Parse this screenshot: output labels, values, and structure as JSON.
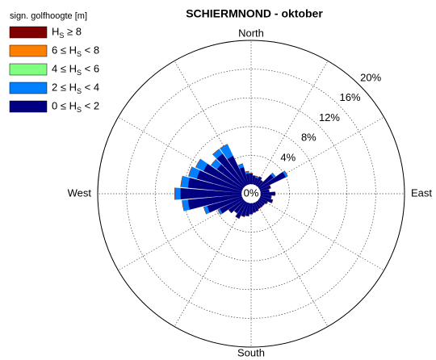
{
  "chart_data": {
    "type": "rose",
    "title": "SCHIERMNOND - oktober",
    "legend_title": "sign. golfhoogte [m]",
    "direction_labels": [
      "North",
      "East",
      "South",
      "West"
    ],
    "x": [
      0,
      10,
      20,
      30,
      40,
      50,
      60,
      70,
      80,
      90,
      100,
      110,
      120,
      130,
      140,
      150,
      160,
      170,
      180,
      190,
      200,
      210,
      220,
      230,
      240,
      250,
      260,
      270,
      280,
      290,
      300,
      310,
      320,
      330,
      340,
      350
    ],
    "rlim": [
      0,
      20
    ],
    "rticks": [
      {
        "value": 0,
        "label": "0%"
      },
      {
        "value": 4,
        "label": "4%"
      },
      {
        "value": 8,
        "label": "8%"
      },
      {
        "value": 12,
        "label": "12%"
      },
      {
        "value": 16,
        "label": "16%"
      },
      {
        "value": 20,
        "label": "20%"
      }
    ],
    "series": [
      {
        "name": "HS ≥ 8",
        "color": "#800000",
        "values": [
          0,
          0,
          0,
          0,
          0,
          0,
          0,
          0,
          0,
          0,
          0,
          0,
          0,
          0,
          0,
          0,
          0,
          0,
          0,
          0,
          0,
          0,
          0,
          0,
          0,
          0,
          0,
          0,
          0,
          0,
          0,
          0,
          0,
          0,
          0,
          0
        ]
      },
      {
        "name": "6 ≤ HS < 8",
        "color": "#ff8000",
        "values": [
          0,
          0,
          0,
          0,
          0,
          0,
          0,
          0,
          0,
          0,
          0,
          0,
          0,
          0,
          0,
          0,
          0,
          0,
          0,
          0,
          0,
          0,
          0,
          0,
          0,
          0,
          0,
          0,
          0,
          0,
          0,
          0,
          0,
          0,
          0,
          0
        ]
      },
      {
        "name": "4 ≤ HS < 6",
        "color": "#80ff80",
        "values": [
          0,
          0,
          0,
          0,
          0,
          0,
          0,
          0,
          0,
          0,
          0,
          0,
          0,
          0,
          0,
          0,
          0,
          0,
          0,
          0,
          0,
          0,
          0,
          0,
          0,
          0,
          0,
          0,
          0,
          0,
          0,
          0,
          0,
          0,
          0,
          0
        ]
      },
      {
        "name": "2 ≤ HS < 4",
        "color": "#0080ff",
        "values": [
          0,
          0,
          0.2,
          0,
          0,
          0.3,
          0.3,
          0,
          0,
          0,
          0,
          0,
          0,
          0,
          0,
          0,
          0,
          0,
          0,
          0,
          0,
          0,
          0,
          0,
          0.3,
          0.5,
          0.8,
          0.8,
          1.0,
          1.2,
          1.2,
          1.0,
          0.8,
          1.8,
          0.5,
          0.3
        ]
      },
      {
        "name": "0 ≤ HS < 2",
        "color": "#000080",
        "values": [
          1.5,
          1.2,
          1.0,
          1.3,
          1.0,
          2.5,
          4.0,
          1.5,
          1.2,
          2.0,
          1.5,
          1.8,
          1.2,
          1.0,
          1.0,
          1.0,
          1.2,
          1.3,
          1.5,
          1.8,
          2.0,
          2.5,
          2.0,
          2.5,
          3.5,
          5.0,
          7.5,
          8.5,
          7.5,
          6.5,
          6.0,
          4.5,
          5.5,
          4.5,
          2.5,
          1.5
        ]
      }
    ]
  }
}
